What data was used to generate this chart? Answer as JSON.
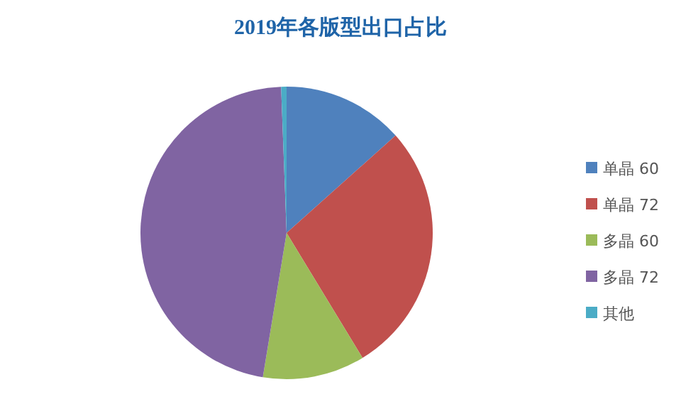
{
  "chart_data": {
    "type": "pie",
    "title": "2019年各版型出口占比",
    "categories": [
      "单晶 60",
      "单晶 72",
      "多晶 60",
      "多晶 72",
      "其他"
    ],
    "values": [
      13.4,
      27.9,
      11.3,
      46.8,
      0.6
    ],
    "colors": [
      "#4f81bd",
      "#c0504d",
      "#9bbb59",
      "#8064a2",
      "#4bacc6"
    ],
    "legend": "right"
  }
}
